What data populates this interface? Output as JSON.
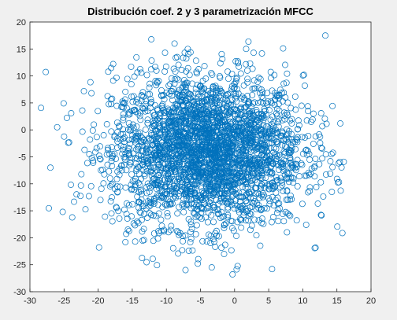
{
  "chart_data": {
    "type": "scatter",
    "title": "Distribución coef. 2 y 3 parametrización MFCC",
    "xlabel": "",
    "ylabel": "",
    "xlim": [
      -30,
      20
    ],
    "ylim": [
      -30,
      20
    ],
    "x_ticks": [
      -30,
      -25,
      -20,
      -15,
      -10,
      -5,
      0,
      5,
      10,
      15,
      20
    ],
    "y_ticks": [
      -30,
      -25,
      -20,
      -15,
      -10,
      -5,
      0,
      5,
      10,
      15,
      20
    ],
    "grid": false,
    "marker": "open-circle",
    "marker_color": "#0072bd",
    "background_color": "#ffffff",
    "figure_color": "#f0f0f0",
    "distribution": {
      "description_of_cloud": "bivariate approximately normal",
      "center": [
        -4,
        -4
      ],
      "std": [
        7,
        7
      ],
      "approx_points": 3000
    },
    "notable_points": [
      {
        "x": 13.3,
        "y": 17.5
      },
      {
        "x": -12.2,
        "y": 16.8
      },
      {
        "x": -8.8,
        "y": 16.0
      },
      {
        "x": -10.2,
        "y": 14.3
      },
      {
        "x": 2.8,
        "y": 14.3
      },
      {
        "x": -17.8,
        "y": 12.2
      },
      {
        "x": -27.0,
        "y": -7.0
      },
      {
        "x": -26.0,
        "y": 0.5
      },
      {
        "x": 15.5,
        "y": 1.2
      },
      {
        "x": 15.3,
        "y": -9.7
      },
      {
        "x": 14.2,
        "y": -4.5
      },
      {
        "x": -25.2,
        "y": -15.2
      },
      {
        "x": -16.0,
        "y": -20.8
      },
      {
        "x": -0.3,
        "y": -26.8
      },
      {
        "x": 5.5,
        "y": -25.8
      },
      {
        "x": -12.0,
        "y": -23.9
      },
      {
        "x": 10.5,
        "y": -17.6
      }
    ]
  }
}
